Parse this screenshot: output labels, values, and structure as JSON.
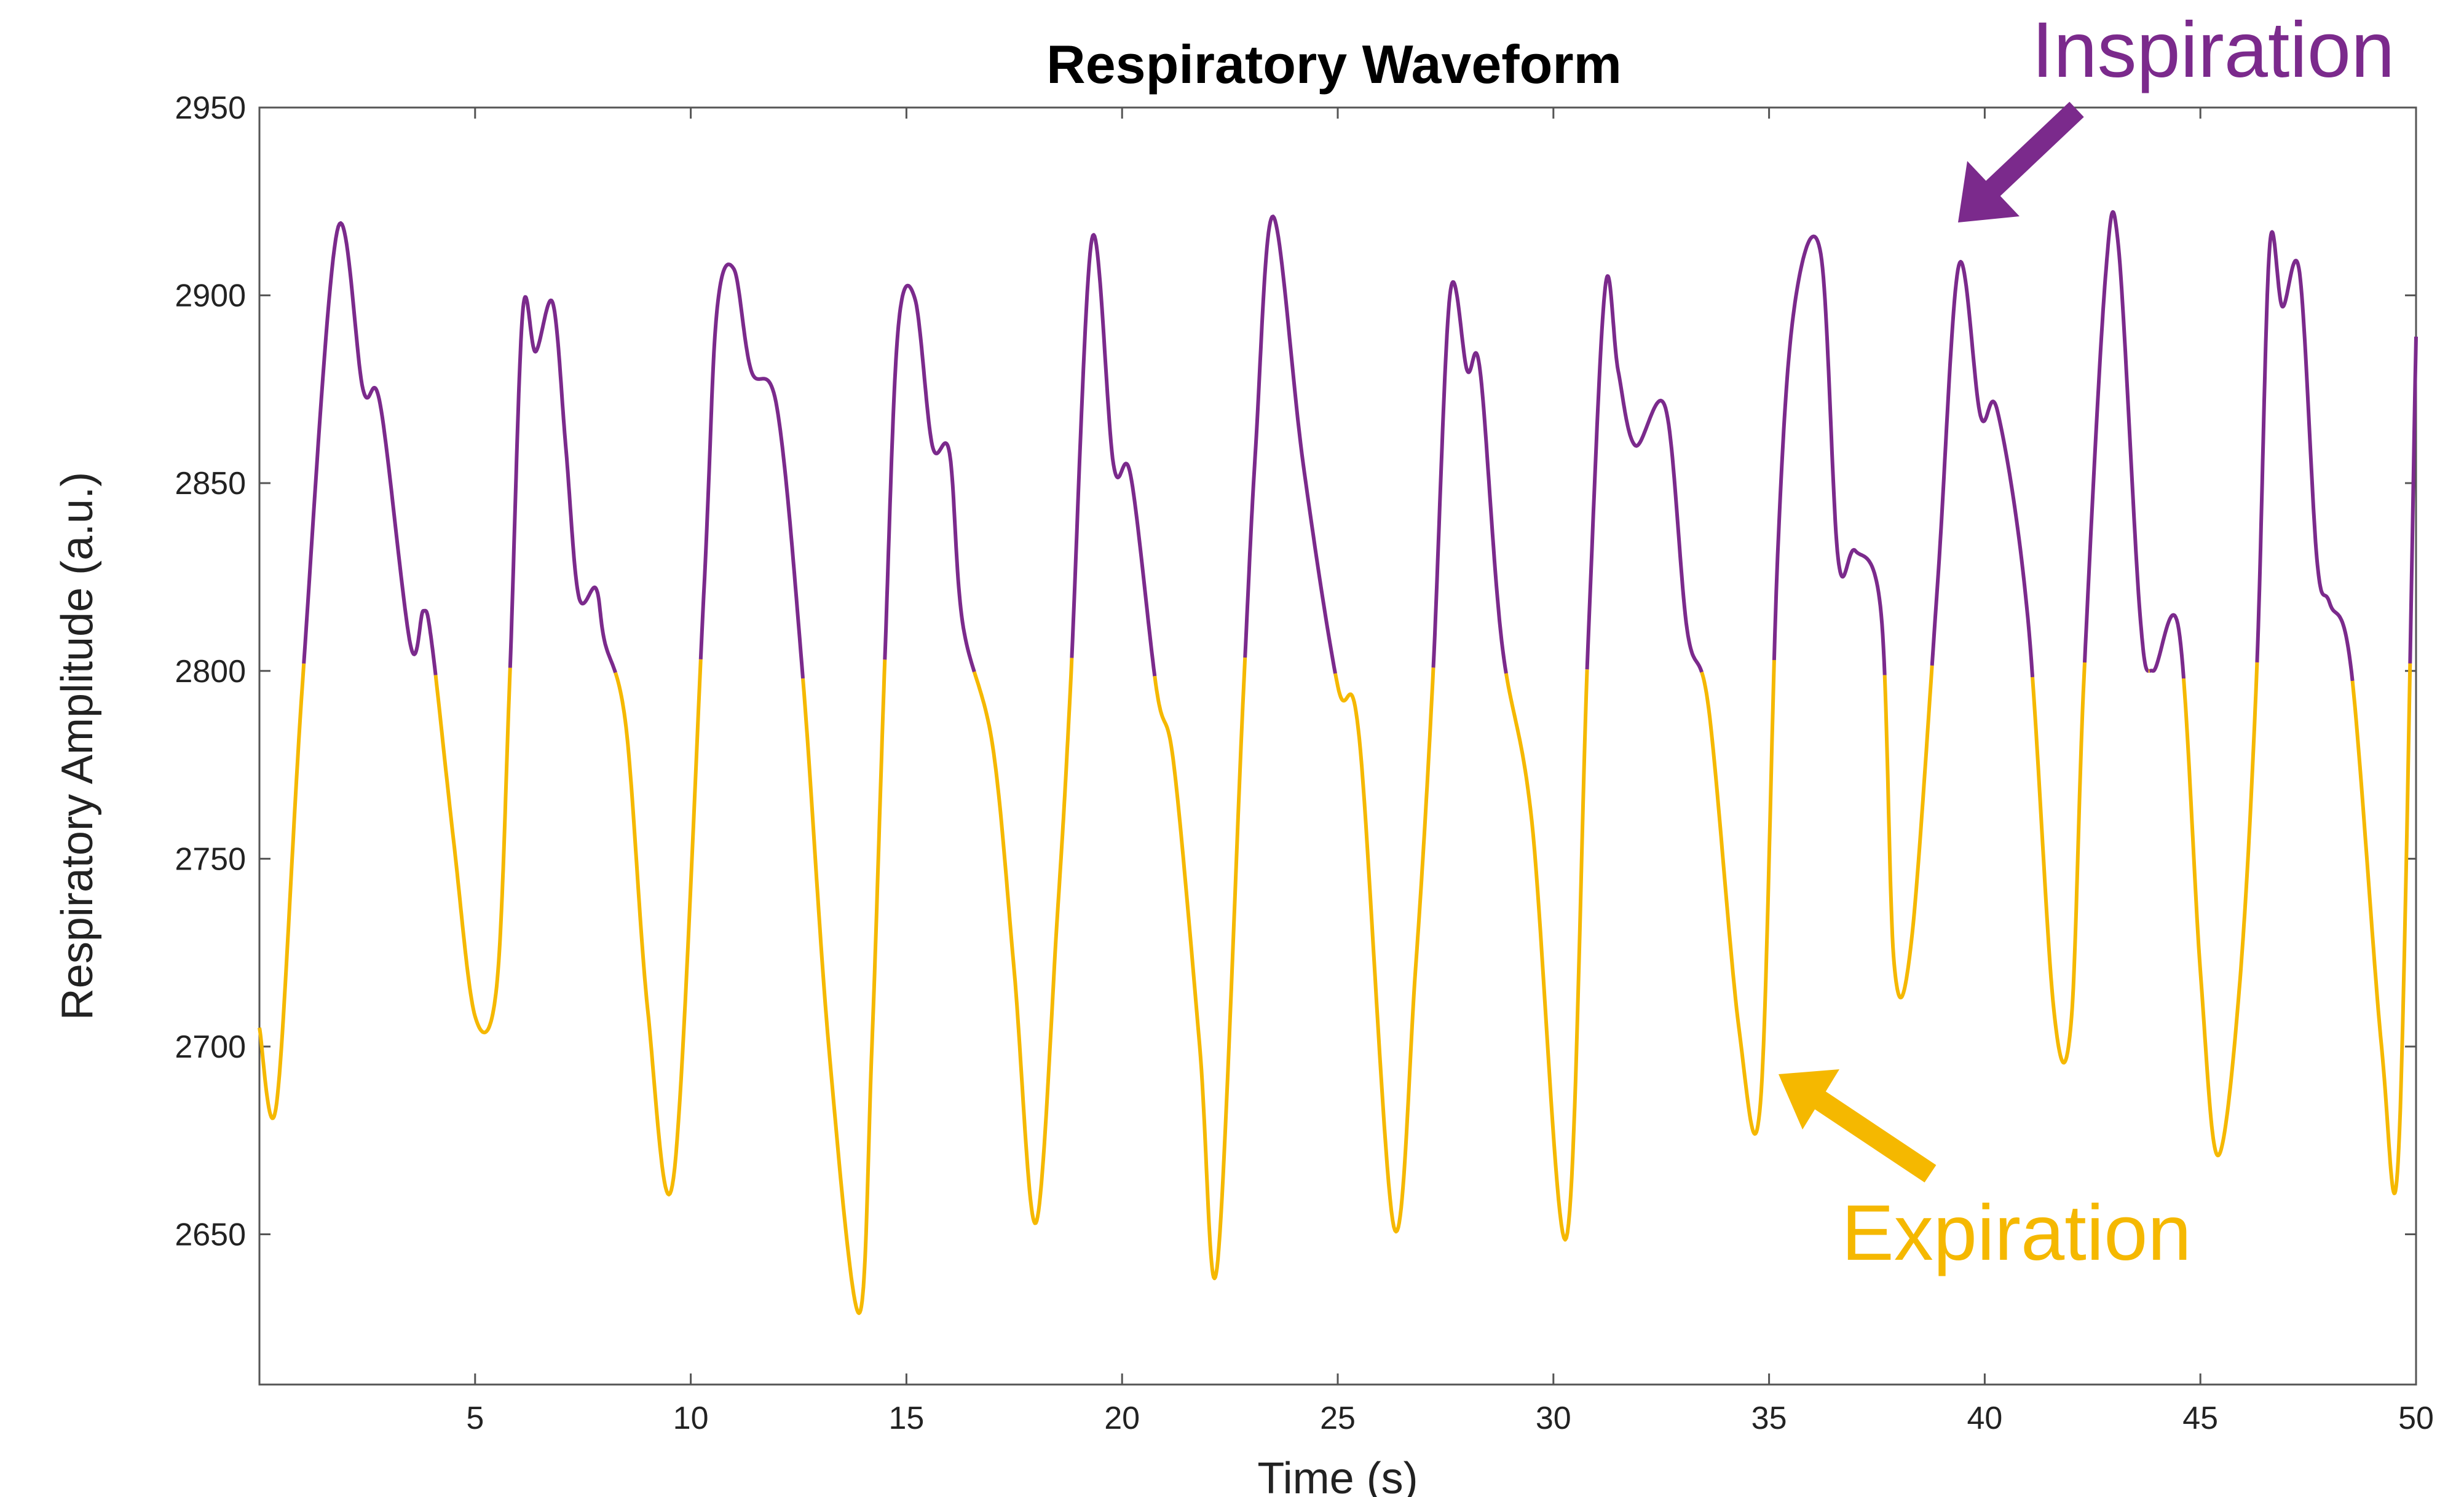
{
  "chart_data": {
    "type": "line",
    "title": "Respiratory Waveform",
    "xlabel": "Time (s)",
    "ylabel": "Respiratory Amplitude (a.u.)",
    "xlim": [
      0,
      50
    ],
    "ylim": [
      2610,
      2950
    ],
    "xticks": [
      5,
      10,
      15,
      20,
      25,
      30,
      35,
      40,
      45,
      50
    ],
    "yticks": [
      2650,
      2700,
      2750,
      2800,
      2850,
      2900,
      2950
    ],
    "grid": false,
    "colors": {
      "inspiration": "#7B2A8C",
      "expiration": "#F5B800"
    },
    "series": [
      {
        "name": "Respiratory waveform",
        "x": [
          0.0,
          0.4,
          1.0,
          1.8,
          2.4,
          2.8,
          3.5,
          3.8,
          4.0,
          4.5,
          5.0,
          5.5,
          5.8,
          6.1,
          6.4,
          6.8,
          7.1,
          7.4,
          7.8,
          8.0,
          8.5,
          9.0,
          9.6,
          10.3,
          10.6,
          11.0,
          11.4,
          12.0,
          12.6,
          13.2,
          13.9,
          14.2,
          14.5,
          14.8,
          15.2,
          15.6,
          16.0,
          16.3,
          17.0,
          17.5,
          18.0,
          18.5,
          18.8,
          19.3,
          19.8,
          20.2,
          20.8,
          21.2,
          21.8,
          22.2,
          22.8,
          23.1,
          23.5,
          24.2,
          25.0,
          25.5,
          26.3,
          26.8,
          27.2,
          27.6,
          28.0,
          28.3,
          28.8,
          29.5,
          30.3,
          30.8,
          31.2,
          31.5,
          31.9,
          32.6,
          33.1,
          33.6,
          34.3,
          34.8,
          35.2,
          35.6,
          36.2,
          36.6,
          37.0,
          37.6,
          37.9,
          38.3,
          38.9,
          39.4,
          39.9,
          40.3,
          41.0,
          41.6,
          42.0,
          42.3,
          42.8,
          43.1,
          43.6,
          43.9,
          44.5,
          45.0,
          45.4,
          45.9,
          46.3,
          46.6,
          46.9,
          47.3,
          47.7,
          48.0,
          48.5,
          49.2,
          49.6,
          50.0
        ],
        "y": [
          2705,
          2685,
          2797,
          2917,
          2875,
          2871,
          2807,
          2816,
          2807,
          2755,
          2708,
          2716,
          2797,
          2895,
          2885,
          2898,
          2860,
          2820,
          2822,
          2808,
          2785,
          2710,
          2665,
          2820,
          2895,
          2907,
          2880,
          2870,
          2798,
          2700,
          2629,
          2700,
          2803,
          2890,
          2899,
          2860,
          2858,
          2813,
          2780,
          2720,
          2653,
          2735,
          2795,
          2915,
          2855,
          2852,
          2795,
          2775,
          2700,
          2641,
          2791,
          2860,
          2921,
          2855,
          2796,
          2782,
          2652,
          2720,
          2797,
          2900,
          2880,
          2880,
          2808,
          2760,
          2649,
          2806,
          2902,
          2880,
          2860,
          2870,
          2811,
          2790,
          2705,
          2685,
          2831,
          2898,
          2911,
          2830,
          2832,
          2815,
          2722,
          2728,
          2822,
          2908,
          2868,
          2869,
          2814,
          2710,
          2706,
          2798,
          2905,
          2913,
          2815,
          2800,
          2811,
          2720,
          2671,
          2715,
          2798,
          2912,
          2897,
          2906,
          2830,
          2818,
          2800,
          2700,
          2673,
          2889
        ]
      }
    ],
    "annotations": [
      {
        "text": "Inspiration",
        "color": "#7B2A8C",
        "points_to": [
          39.0,
          2918
        ]
      },
      {
        "text": "Expiration",
        "color": "#F5B800",
        "points_to": [
          35.0,
          2690
        ]
      }
    ]
  }
}
